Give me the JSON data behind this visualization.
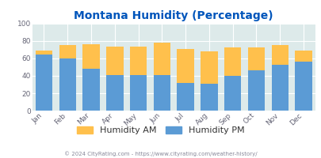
{
  "title": "Montana Humidity (Percentage)",
  "months": [
    "Jan",
    "Feb",
    "Mar",
    "Apr",
    "May",
    "Jun",
    "Jul",
    "Aug",
    "Sep",
    "Oct",
    "Nov",
    "Dec"
  ],
  "humidity_pm": [
    65,
    60,
    48,
    41,
    41,
    41,
    32,
    31,
    40,
    46,
    53,
    56
  ],
  "humidity_am": [
    4,
    15,
    28,
    33,
    33,
    37,
    39,
    37,
    33,
    27,
    22,
    13
  ],
  "color_pm": "#5b9bd5",
  "color_am": "#ffc04c",
  "bg_color": "#ddeaea",
  "ylim": [
    0,
    100
  ],
  "yticks": [
    0,
    20,
    40,
    60,
    80,
    100
  ],
  "title_color": "#0055bb",
  "legend_am_label": "Humidity AM",
  "legend_pm_label": "Humidity PM",
  "legend_text_color": "#333333",
  "footer_text": "© 2024 CityRating.com - https://www.cityrating.com/weather-history/",
  "footer_color": "#888899",
  "title_fontsize": 10,
  "tick_fontsize": 6.5,
  "legend_fontsize": 8,
  "footer_fontsize": 5.0
}
